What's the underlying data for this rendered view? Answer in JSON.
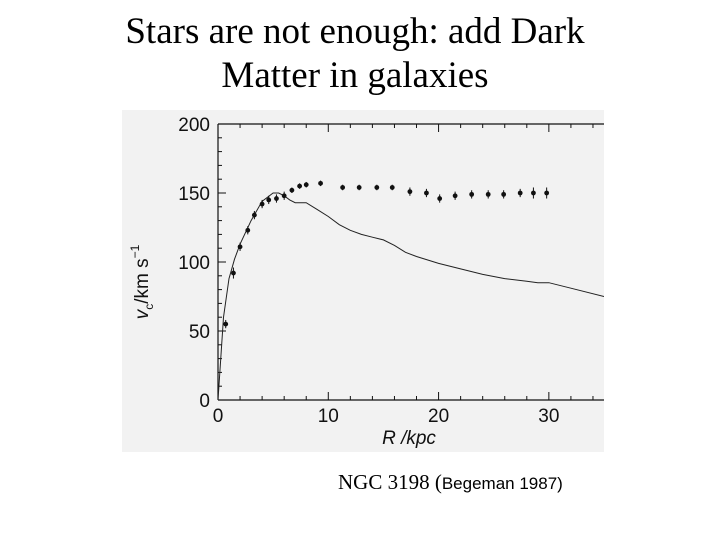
{
  "slide": {
    "title_line1": "Stars are not enough: add Dark",
    "title_line2": "Matter in galaxies"
  },
  "caption": {
    "main": "NGC 3198 (",
    "cite": "Begeman 1987)"
  },
  "chart_data": {
    "type": "scatter",
    "title": "",
    "xlabel": "R /kpc",
    "ylabel": "v_c/km s^-1",
    "ylabel_parts": {
      "v": "v",
      "sub": "c",
      "unit": "/km s",
      "sup": "−1"
    },
    "xlim": [
      0,
      35
    ],
    "ylim": [
      0,
      200
    ],
    "xticks": [
      0,
      10,
      20,
      30
    ],
    "yticks": [
      0,
      50,
      100,
      150,
      200
    ],
    "grid": false,
    "series": [
      {
        "kind": "points",
        "points": [
          {
            "x": 0.7,
            "y": 55,
            "err": 3
          },
          {
            "x": 1.4,
            "y": 92,
            "err": 4
          },
          {
            "x": 2.0,
            "y": 111,
            "err": 3
          },
          {
            "x": 2.7,
            "y": 123,
            "err": 3
          },
          {
            "x": 3.3,
            "y": 134,
            "err": 3
          },
          {
            "x": 4.0,
            "y": 142,
            "err": 3
          },
          {
            "x": 4.6,
            "y": 145,
            "err": 3
          },
          {
            "x": 5.3,
            "y": 146,
            "err": 3
          },
          {
            "x": 6.0,
            "y": 148,
            "err": 3
          },
          {
            "x": 6.7,
            "y": 152,
            "err": 2
          },
          {
            "x": 7.4,
            "y": 155,
            "err": 2
          },
          {
            "x": 8.0,
            "y": 156,
            "err": 2
          },
          {
            "x": 9.3,
            "y": 157,
            "err": 2
          },
          {
            "x": 11.3,
            "y": 154,
            "err": 2
          },
          {
            "x": 12.8,
            "y": 154,
            "err": 2
          },
          {
            "x": 14.4,
            "y": 154,
            "err": 2
          },
          {
            "x": 15.8,
            "y": 154,
            "err": 2
          },
          {
            "x": 17.4,
            "y": 151,
            "err": 3
          },
          {
            "x": 18.9,
            "y": 150,
            "err": 3
          },
          {
            "x": 20.1,
            "y": 146,
            "err": 3
          },
          {
            "x": 21.5,
            "y": 148,
            "err": 3
          },
          {
            "x": 23.0,
            "y": 149,
            "err": 3
          },
          {
            "x": 24.5,
            "y": 149,
            "err": 3
          },
          {
            "x": 25.9,
            "y": 149,
            "err": 3
          },
          {
            "x": 27.4,
            "y": 150,
            "err": 3
          },
          {
            "x": 28.6,
            "y": 150,
            "err": 4
          },
          {
            "x": 29.8,
            "y": 150,
            "err": 4
          }
        ]
      },
      {
        "kind": "line",
        "x": [
          0,
          0.5,
          1,
          1.5,
          2,
          3,
          4,
          5,
          5.5,
          6,
          6.5,
          7,
          8,
          9,
          10,
          11,
          12,
          13,
          14,
          15,
          16,
          17,
          18,
          20,
          22,
          24,
          26,
          28,
          29,
          30,
          32,
          35
        ],
        "y": [
          0,
          60,
          88,
          102,
          113,
          130,
          144,
          150,
          150,
          148,
          145,
          143,
          143,
          138,
          133,
          127,
          123,
          120,
          118,
          116,
          112,
          107,
          104,
          99,
          95,
          91,
          88,
          86,
          85,
          85,
          81,
          75
        ]
      }
    ]
  }
}
